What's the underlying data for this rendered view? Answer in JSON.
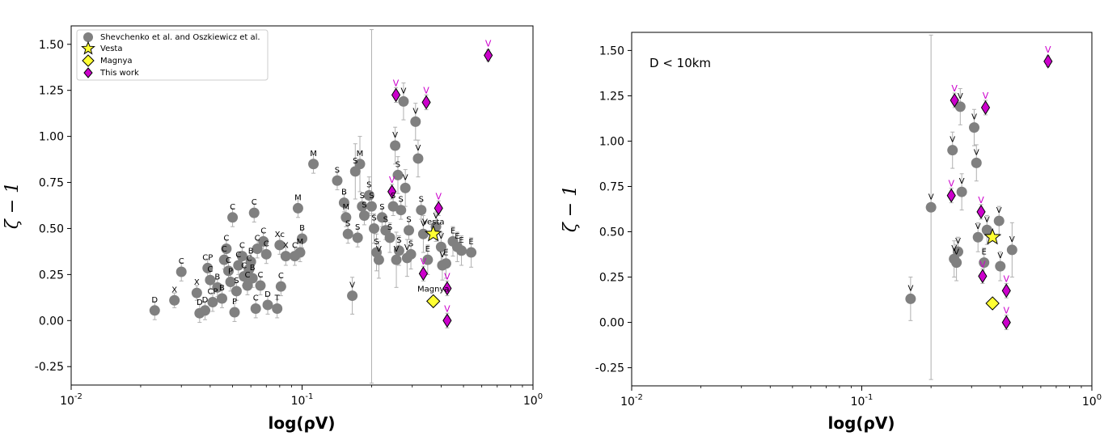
{
  "chart_data": [
    {
      "type": "scatter",
      "title": "",
      "xlabel": "log(ρV)",
      "ylabel": "ζ − 1",
      "xscale": "log",
      "xlim": [
        0.01,
        1
      ],
      "ylim": [
        -0.35,
        1.6
      ],
      "xticks": [
        "10^-2",
        "10^-1",
        "10^0"
      ],
      "yticks": [
        "-0.25",
        "0.00",
        "0.25",
        "0.50",
        "0.75",
        "1.00",
        "1.25",
        "1.50"
      ],
      "legend_position": "top-left",
      "legend": [
        {
          "name": "Shevchenko et al. and Oszkiewicz et al.",
          "marker": "circle",
          "color": "#808080"
        },
        {
          "name": "Vesta",
          "marker": "star",
          "color": "#ffff33"
        },
        {
          "name": "Magnya",
          "marker": "diamond",
          "color": "#ffff33"
        },
        {
          "name": "This work",
          "marker": "diamond",
          "color": "#cc00cc"
        }
      ],
      "series": [
        {
          "name": "Shevchenko et al. and Oszkiewicz et al.",
          "points": [
            {
              "x": 0.023,
              "y": 0.055,
              "label": "D",
              "err": 0.05
            },
            {
              "x": 0.028,
              "y": 0.11,
              "label": "X",
              "err": 0.04
            },
            {
              "x": 0.03,
              "y": 0.265,
              "label": "C",
              "err": 0.05
            },
            {
              "x": 0.035,
              "y": 0.15,
              "label": "X",
              "err": 0.04
            },
            {
              "x": 0.036,
              "y": 0.04,
              "label": "D",
              "err": 0.05
            },
            {
              "x": 0.038,
              "y": 0.055,
              "label": "D",
              "err": 0.05
            },
            {
              "x": 0.039,
              "y": 0.285,
              "label": "CP",
              "err": 0.05
            },
            {
              "x": 0.04,
              "y": 0.22,
              "label": "C",
              "err": 0.05
            },
            {
              "x": 0.041,
              "y": 0.1,
              "label": "CP",
              "err": 0.05
            },
            {
              "x": 0.043,
              "y": 0.18,
              "label": "B",
              "err": 0.05
            },
            {
              "x": 0.045,
              "y": 0.12,
              "label": "B",
              "err": 0.05
            },
            {
              "x": 0.046,
              "y": 0.33,
              "label": "C",
              "err": 0.05
            },
            {
              "x": 0.047,
              "y": 0.39,
              "label": "C",
              "err": 0.05
            },
            {
              "x": 0.048,
              "y": 0.27,
              "label": "C",
              "err": 0.05
            },
            {
              "x": 0.049,
              "y": 0.21,
              "label": "P",
              "err": 0.05
            },
            {
              "x": 0.05,
              "y": 0.56,
              "label": "C",
              "err": 0.05
            },
            {
              "x": 0.051,
              "y": 0.045,
              "label": "P",
              "err": 0.05
            },
            {
              "x": 0.052,
              "y": 0.16,
              "label": "S",
              "err": 0.05
            },
            {
              "x": 0.053,
              "y": 0.3,
              "label": "C",
              "err": 0.05
            },
            {
              "x": 0.055,
              "y": 0.35,
              "label": "C",
              "err": 0.05
            },
            {
              "x": 0.056,
              "y": 0.24,
              "label": "C",
              "err": 0.05
            },
            {
              "x": 0.058,
              "y": 0.19,
              "label": "C",
              "err": 0.05
            },
            {
              "x": 0.059,
              "y": 0.28,
              "label": "C",
              "err": 0.05
            },
            {
              "x": 0.06,
              "y": 0.32,
              "label": "B",
              "err": 0.05
            },
            {
              "x": 0.061,
              "y": 0.23,
              "label": "B",
              "err": 0.05
            },
            {
              "x": 0.062,
              "y": 0.585,
              "label": "C",
              "err": 0.05
            },
            {
              "x": 0.063,
              "y": 0.065,
              "label": "C",
              "err": 0.05
            },
            {
              "x": 0.064,
              "y": 0.39,
              "label": "C",
              "err": 0.05
            },
            {
              "x": 0.066,
              "y": 0.19,
              "label": "C",
              "err": 0.05
            },
            {
              "x": 0.068,
              "y": 0.43,
              "label": "C",
              "err": 0.05
            },
            {
              "x": 0.07,
              "y": 0.36,
              "label": "C",
              "err": 0.05
            },
            {
              "x": 0.071,
              "y": 0.085,
              "label": "D",
              "err": 0.05
            },
            {
              "x": 0.078,
              "y": 0.065,
              "label": "T",
              "err": 0.05
            },
            {
              "x": 0.08,
              "y": 0.41,
              "label": "Xc",
              "err": 0.05
            },
            {
              "x": 0.081,
              "y": 0.185,
              "label": "C",
              "err": 0.05
            },
            {
              "x": 0.085,
              "y": 0.35,
              "label": "X",
              "err": 0.05
            },
            {
              "x": 0.093,
              "y": 0.35,
              "label": "C",
              "err": 0.05
            },
            {
              "x": 0.096,
              "y": 0.61,
              "label": "M",
              "err": 0.05
            },
            {
              "x": 0.098,
              "y": 0.37,
              "label": "M",
              "err": 0.05
            },
            {
              "x": 0.1,
              "y": 0.445,
              "label": "B",
              "err": 0.05
            },
            {
              "x": 0.112,
              "y": 0.85,
              "label": "M",
              "err": 0.05
            },
            {
              "x": 0.142,
              "y": 0.76,
              "label": "S",
              "err": 0.05
            },
            {
              "x": 0.152,
              "y": 0.64,
              "label": "B",
              "err": 0.05
            },
            {
              "x": 0.155,
              "y": 0.56,
              "label": "M",
              "err": 0.05
            },
            {
              "x": 0.158,
              "y": 0.47,
              "label": "S",
              "err": 0.05
            },
            {
              "x": 0.165,
              "y": 0.135,
              "label": "V",
              "err": 0.1
            },
            {
              "x": 0.17,
              "y": 0.81,
              "label": "S",
              "err": 0.15
            },
            {
              "x": 0.174,
              "y": 0.45,
              "label": "S",
              "err": 0.05
            },
            {
              "x": 0.178,
              "y": 0.85,
              "label": "M",
              "err": 0.15
            },
            {
              "x": 0.182,
              "y": 0.62,
              "label": "S",
              "err": 0.05
            },
            {
              "x": 0.186,
              "y": 0.57,
              "label": "S",
              "err": 0.05
            },
            {
              "x": 0.195,
              "y": 0.68,
              "label": "S",
              "err": 0.1
            },
            {
              "x": 0.2,
              "y": 0.62,
              "label": "S",
              "err": 0.05
            },
            {
              "x": 0.205,
              "y": 0.5,
              "label": "S",
              "err": 0.08
            },
            {
              "x": 0.21,
              "y": 0.37,
              "label": "S",
              "err": 0.1
            },
            {
              "x": 0.215,
              "y": 0.33,
              "label": "V",
              "err": 0.1
            },
            {
              "x": 0.222,
              "y": 0.56,
              "label": "S",
              "err": 0.05
            },
            {
              "x": 0.23,
              "y": 0.49,
              "label": "S",
              "err": 0.05
            },
            {
              "x": 0.24,
              "y": 0.45,
              "label": "S",
              "err": 0.08
            },
            {
              "x": 0.248,
              "y": 0.62,
              "label": "S",
              "err": 0.05
            },
            {
              "x": 0.253,
              "y": 0.95,
              "label": "V",
              "err": 0.1
            },
            {
              "x": 0.256,
              "y": 0.33,
              "label": "V",
              "err": 0.15
            },
            {
              "x": 0.26,
              "y": 0.79,
              "label": "S",
              "err": 0.1
            },
            {
              "x": 0.263,
              "y": 0.38,
              "label": "S",
              "err": 0.08
            },
            {
              "x": 0.268,
              "y": 0.6,
              "label": "S",
              "err": 0.05
            },
            {
              "x": 0.275,
              "y": 1.19,
              "label": "V",
              "err": 0.1
            },
            {
              "x": 0.28,
              "y": 0.72,
              "label": "V",
              "err": 0.1
            },
            {
              "x": 0.285,
              "y": 0.34,
              "label": "V",
              "err": 0.1
            },
            {
              "x": 0.29,
              "y": 0.49,
              "label": "S",
              "err": 0.05
            },
            {
              "x": 0.296,
              "y": 0.36,
              "label": "S",
              "err": 0.08
            },
            {
              "x": 0.31,
              "y": 1.08,
              "label": "V",
              "err": 0.1
            },
            {
              "x": 0.318,
              "y": 0.88,
              "label": "V",
              "err": 0.1
            },
            {
              "x": 0.328,
              "y": 0.6,
              "label": "S",
              "err": 0.05
            },
            {
              "x": 0.335,
              "y": 0.47,
              "label": "V",
              "err": 0.1
            },
            {
              "x": 0.35,
              "y": 0.33,
              "label": "E",
              "err": 0.08
            },
            {
              "x": 0.38,
              "y": 0.51,
              "label": "V",
              "err": 0.08
            },
            {
              "x": 0.4,
              "y": 0.4,
              "label": "V",
              "err": 0.08
            },
            {
              "x": 0.405,
              "y": 0.3,
              "label": "V",
              "err": 0.08
            },
            {
              "x": 0.42,
              "y": 0.31,
              "label": "E",
              "err": 0.08
            },
            {
              "x": 0.45,
              "y": 0.43,
              "label": "E",
              "err": 0.08
            },
            {
              "x": 0.47,
              "y": 0.4,
              "label": "E",
              "err": 0.08
            },
            {
              "x": 0.49,
              "y": 0.38,
              "label": "E",
              "err": 0.08
            },
            {
              "x": 0.54,
              "y": 0.37,
              "label": "E",
              "err": 0.08
            },
            {
              "x": 0.2,
              "y": 0.62,
              "label": "",
              "err": 0.96
            }
          ]
        },
        {
          "name": "Vesta",
          "points": [
            {
              "x": 0.37,
              "y": 0.47,
              "label": "Vesta",
              "err": 0
            }
          ]
        },
        {
          "name": "Magnya",
          "points": [
            {
              "x": 0.37,
              "y": 0.105,
              "label": "Magnya",
              "err": 0
            }
          ]
        },
        {
          "name": "This work",
          "points": [
            {
              "x": 0.245,
              "y": 0.7,
              "label": "V",
              "err": 0.04
            },
            {
              "x": 0.255,
              "y": 1.225,
              "label": "V",
              "err": 0.04
            },
            {
              "x": 0.335,
              "y": 0.255,
              "label": "V",
              "err": 0.04
            },
            {
              "x": 0.345,
              "y": 1.185,
              "label": "V",
              "err": 0.04
            },
            {
              "x": 0.39,
              "y": 0.61,
              "label": "V",
              "err": 0.04
            },
            {
              "x": 0.425,
              "y": 0.175,
              "label": "V",
              "err": 0.04
            },
            {
              "x": 0.425,
              "y": 0.0,
              "label": "V",
              "err": 0.04
            },
            {
              "x": 0.64,
              "y": 1.44,
              "label": "V",
              "err": 0.03
            }
          ]
        }
      ]
    },
    {
      "type": "scatter",
      "title": "",
      "annotation": "D < 10km",
      "xlabel": "log(ρV)",
      "ylabel": "ζ − 1",
      "xscale": "log",
      "xlim": [
        0.01,
        1
      ],
      "ylim": [
        -0.35,
        1.6
      ],
      "xticks": [
        "10^-2",
        "10^-1",
        "10^0"
      ],
      "yticks": [
        "-0.25",
        "0.00",
        "0.25",
        "0.50",
        "0.75",
        "1.00",
        "1.25",
        "1.50"
      ],
      "series": [
        {
          "name": "",
          "points": [
            {
              "x": 0.163,
              "y": 0.13,
              "label": "V",
              "err": 0.12
            },
            {
              "x": 0.2,
              "y": 0.635,
              "label": "V",
              "err": 0.95
            },
            {
              "x": 0.248,
              "y": 0.95,
              "label": "V",
              "err": 0.1
            },
            {
              "x": 0.252,
              "y": 0.35,
              "label": "V",
              "err": 0.1
            },
            {
              "x": 0.258,
              "y": 0.33,
              "label": "V",
              "err": 0.1
            },
            {
              "x": 0.262,
              "y": 0.39,
              "label": "V",
              "err": 0.08
            },
            {
              "x": 0.268,
              "y": 1.19,
              "label": "V",
              "err": 0.1
            },
            {
              "x": 0.272,
              "y": 0.72,
              "label": "V",
              "err": 0.1
            },
            {
              "x": 0.308,
              "y": 1.075,
              "label": "V",
              "err": 0.1
            },
            {
              "x": 0.315,
              "y": 0.88,
              "label": "V",
              "err": 0.1
            },
            {
              "x": 0.32,
              "y": 0.47,
              "label": "V",
              "err": 0.08
            },
            {
              "x": 0.34,
              "y": 0.33,
              "label": "E",
              "err": 0.08
            },
            {
              "x": 0.35,
              "y": 0.51,
              "label": "V",
              "err": 0.08
            },
            {
              "x": 0.395,
              "y": 0.56,
              "label": "V",
              "err": 0.08
            },
            {
              "x": 0.4,
              "y": 0.31,
              "label": "V",
              "err": 0.08
            },
            {
              "x": 0.45,
              "y": 0.4,
              "label": "V",
              "err": 0.15
            }
          ]
        },
        {
          "name": "Vesta",
          "points": [
            {
              "x": 0.37,
              "y": 0.47,
              "label": "",
              "err": 0
            }
          ]
        },
        {
          "name": "Magnya",
          "points": [
            {
              "x": 0.37,
              "y": 0.105,
              "label": "",
              "err": 0
            }
          ]
        },
        {
          "name": "This work",
          "points": [
            {
              "x": 0.245,
              "y": 0.7,
              "label": "V",
              "err": 0.04
            },
            {
              "x": 0.253,
              "y": 1.225,
              "label": "V",
              "err": 0.04
            },
            {
              "x": 0.335,
              "y": 0.255,
              "label": "V",
              "err": 0.04
            },
            {
              "x": 0.345,
              "y": 1.185,
              "label": "V",
              "err": 0.04
            },
            {
              "x": 0.33,
              "y": 0.61,
              "label": "V",
              "err": 0.04
            },
            {
              "x": 0.425,
              "y": 0.175,
              "label": "V",
              "err": 0.04
            },
            {
              "x": 0.425,
              "y": 0.0,
              "label": "V",
              "err": 0.04
            },
            {
              "x": 0.645,
              "y": 1.44,
              "label": "V",
              "err": 0.03
            }
          ]
        }
      ]
    }
  ],
  "colors": {
    "grey_marker": "#808080",
    "magenta": "#cc00cc",
    "yellow": "#ffff33",
    "errbar": "#b0b0b0"
  }
}
